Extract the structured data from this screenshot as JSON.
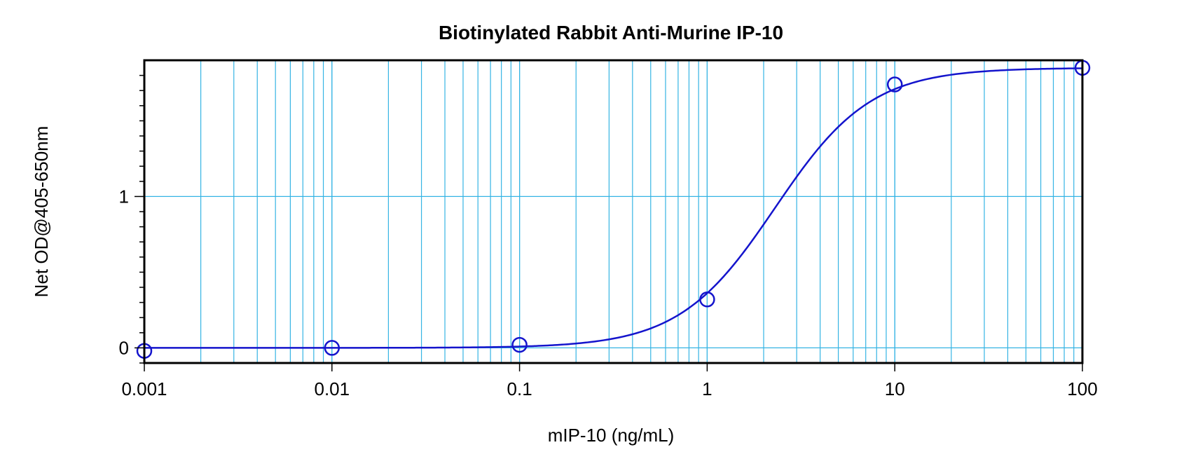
{
  "chart_data": {
    "type": "scatter",
    "title": "Biotinylated Rabbit Anti-Murine IP-10",
    "xlabel": "mIP-10 (ng/mL)",
    "ylabel": "Net OD@405-650nm",
    "x_scale": "log",
    "xlim": [
      0.001,
      100
    ],
    "ylim": [
      -0.1,
      1.9
    ],
    "x_ticks": [
      0.001,
      0.01,
      0.1,
      1,
      10,
      100
    ],
    "x_tick_labels": [
      "0.001",
      "0.01",
      "0.1",
      "1",
      "10",
      "100"
    ],
    "y_ticks": [
      0,
      1
    ],
    "y_tick_labels": [
      "0",
      "1"
    ],
    "grid": true,
    "legend": "none",
    "series": [
      {
        "kind": "points",
        "x": [
          0.001,
          0.01,
          0.1,
          1,
          10,
          100
        ],
        "y": [
          -0.02,
          0.0,
          0.02,
          0.32,
          1.74,
          1.85
        ]
      },
      {
        "kind": "fit-curve",
        "model": "4PL",
        "params": {
          "bottom": 0.0,
          "top": 1.85,
          "ec50": 2.3,
          "hill": 1.7
        }
      }
    ],
    "colors": {
      "grid": "#35b4e4",
      "series": "#1414cc",
      "axis": "#000000"
    }
  }
}
